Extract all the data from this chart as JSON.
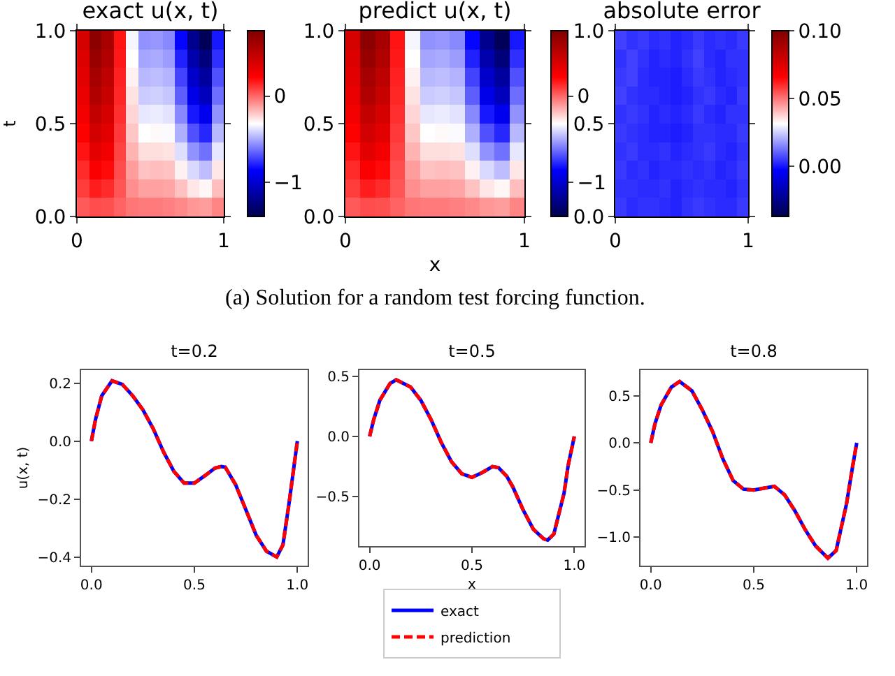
{
  "chart_data": [
    {
      "type": "heatmap",
      "title": "exact u(x, t)",
      "ylabel": "t",
      "x": [
        0.042,
        0.125,
        0.208,
        0.292,
        0.375,
        0.458,
        0.542,
        0.625,
        0.708,
        0.792,
        0.875,
        0.958
      ],
      "cells": [
        [
          0.4,
          0.71,
          0.59,
          0.18,
          -0.34,
          -0.55,
          -0.54,
          -0.57,
          -0.85,
          -1.2,
          -1.36,
          -0.81
        ],
        [
          0.37,
          0.66,
          0.55,
          0.17,
          -0.32,
          -0.51,
          -0.5,
          -0.53,
          -0.79,
          -1.11,
          -1.26,
          -0.76
        ],
        [
          0.34,
          0.6,
          0.5,
          0.15,
          -0.29,
          -0.47,
          -0.46,
          -0.48,
          -0.72,
          -1.02,
          -1.15,
          -0.69
        ],
        [
          0.31,
          0.55,
          0.46,
          0.14,
          -0.26,
          -0.43,
          -0.42,
          -0.44,
          -0.66,
          -0.93,
          -1.06,
          -0.63
        ],
        [
          0.27,
          0.48,
          0.4,
          0.12,
          -0.23,
          -0.37,
          -0.36,
          -0.38,
          -0.57,
          -0.81,
          -0.91,
          -0.55
        ],
        [
          0.23,
          0.41,
          0.34,
          0.1,
          -0.2,
          -0.32,
          -0.31,
          -0.33,
          -0.49,
          -0.69,
          -0.78,
          -0.47
        ],
        [
          0.18,
          0.33,
          0.27,
          0.08,
          -0.16,
          -0.25,
          -0.25,
          -0.26,
          -0.39,
          -0.55,
          -0.62,
          -0.37
        ],
        [
          0.13,
          0.24,
          0.2,
          0.06,
          -0.11,
          -0.19,
          -0.18,
          -0.19,
          -0.29,
          -0.4,
          -0.46,
          -0.27
        ],
        [
          0.09,
          0.16,
          0.13,
          0.04,
          -0.08,
          -0.12,
          -0.12,
          -0.13,
          -0.19,
          -0.27,
          -0.3,
          -0.18
        ],
        [
          0.03,
          0.06,
          0.05,
          0.01,
          -0.03,
          -0.04,
          -0.04,
          -0.05,
          -0.07,
          -0.1,
          -0.11,
          -0.06
        ]
      ],
      "xlim": [
        0,
        1
      ],
      "xticks": [
        {
          "value": 0,
          "label": "0"
        },
        {
          "value": 1,
          "label": "1"
        }
      ],
      "ylim": [
        0,
        1
      ],
      "yticks": [
        {
          "value": 0,
          "label": "0.0"
        },
        {
          "value": 0.5,
          "label": "0.5"
        },
        {
          "value": 1,
          "label": "1.0"
        }
      ],
      "clim": [
        -1.4,
        0.76
      ],
      "cticks": [
        {
          "value": -1,
          "label": "−1"
        },
        {
          "value": 0,
          "label": "0"
        }
      ]
    },
    {
      "type": "heatmap",
      "title": "predict u(x, t)",
      "xlabel": "x",
      "annotations": [
        "(a) Solution for a random test forcing function."
      ],
      "x": [
        0.042,
        0.125,
        0.208,
        0.292,
        0.375,
        0.458,
        0.542,
        0.625,
        0.708,
        0.792,
        0.875,
        0.958
      ],
      "cells": [
        [
          0.4,
          0.71,
          0.59,
          0.18,
          -0.34,
          -0.55,
          -0.54,
          -0.57,
          -0.85,
          -1.2,
          -1.36,
          -0.81
        ],
        [
          0.37,
          0.66,
          0.55,
          0.17,
          -0.32,
          -0.51,
          -0.5,
          -0.53,
          -0.79,
          -1.11,
          -1.26,
          -0.76
        ],
        [
          0.34,
          0.6,
          0.5,
          0.15,
          -0.29,
          -0.47,
          -0.46,
          -0.48,
          -0.72,
          -1.02,
          -1.15,
          -0.69
        ],
        [
          0.31,
          0.55,
          0.46,
          0.14,
          -0.26,
          -0.43,
          -0.42,
          -0.44,
          -0.66,
          -0.93,
          -1.06,
          -0.63
        ],
        [
          0.27,
          0.48,
          0.4,
          0.12,
          -0.23,
          -0.37,
          -0.36,
          -0.38,
          -0.57,
          -0.81,
          -0.91,
          -0.55
        ],
        [
          0.23,
          0.41,
          0.34,
          0.1,
          -0.2,
          -0.32,
          -0.31,
          -0.33,
          -0.49,
          -0.69,
          -0.78,
          -0.47
        ],
        [
          0.18,
          0.33,
          0.27,
          0.08,
          -0.16,
          -0.25,
          -0.25,
          -0.26,
          -0.39,
          -0.55,
          -0.62,
          -0.37
        ],
        [
          0.13,
          0.24,
          0.2,
          0.06,
          -0.11,
          -0.19,
          -0.18,
          -0.19,
          -0.29,
          -0.4,
          -0.46,
          -0.27
        ],
        [
          0.09,
          0.16,
          0.13,
          0.04,
          -0.08,
          -0.12,
          -0.12,
          -0.13,
          -0.19,
          -0.27,
          -0.3,
          -0.18
        ],
        [
          0.03,
          0.06,
          0.05,
          0.01,
          -0.03,
          -0.04,
          -0.04,
          -0.05,
          -0.07,
          -0.1,
          -0.11,
          -0.06
        ]
      ],
      "xlim": [
        0,
        1
      ],
      "xticks": [
        {
          "value": 0,
          "label": "0"
        },
        {
          "value": 1,
          "label": "1"
        }
      ],
      "ylim": [
        0,
        1
      ],
      "yticks": [
        {
          "value": 0,
          "label": "0.0"
        },
        {
          "value": 0.5,
          "label": "0.5"
        },
        {
          "value": 1,
          "label": "1.0"
        }
      ],
      "clim": [
        -1.4,
        0.76
      ],
      "cticks": [
        {
          "value": -1,
          "label": "−1"
        },
        {
          "value": 0,
          "label": "0"
        }
      ]
    },
    {
      "type": "heatmap",
      "title": "absolute error",
      "x": [
        0.042,
        0.125,
        0.208,
        0.292,
        0.375,
        0.458,
        0.542,
        0.625,
        0.708,
        0.792,
        0.875,
        0.958
      ],
      "cells": [
        [
          0.006,
          0.004,
          0.005,
          0.003,
          0.004,
          0.002,
          0.003,
          0.005,
          0.003,
          0.004,
          0.003,
          0.005
        ],
        [
          0.004,
          0.006,
          0.004,
          0.002,
          0.003,
          0.002,
          0.004,
          0.006,
          0.003,
          0.002,
          0.004,
          0.004
        ],
        [
          0.005,
          0.006,
          0.003,
          0.002,
          0.002,
          0.001,
          0.003,
          0.005,
          0.004,
          0.002,
          0.003,
          0.004
        ],
        [
          0.006,
          0.004,
          0.003,
          0.003,
          0.002,
          0.001,
          0.002,
          0.004,
          0.005,
          0.003,
          0.002,
          0.005
        ],
        [
          0.004,
          0.005,
          0.004,
          0.002,
          0.003,
          0.002,
          0.003,
          0.005,
          0.003,
          0.002,
          0.004,
          0.004
        ],
        [
          0.005,
          0.004,
          0.003,
          0.002,
          0.002,
          0.001,
          0.002,
          0.004,
          0.004,
          0.003,
          0.003,
          0.005
        ],
        [
          0.004,
          0.005,
          0.003,
          0.003,
          0.004,
          0.002,
          0.003,
          0.004,
          0.005,
          0.003,
          0.002,
          0.004
        ],
        [
          0.005,
          0.003,
          0.004,
          0.002,
          0.003,
          0.003,
          0.004,
          0.003,
          0.004,
          0.002,
          0.003,
          0.005
        ],
        [
          0.004,
          0.004,
          0.003,
          0.003,
          0.004,
          0.002,
          0.003,
          0.004,
          0.003,
          0.003,
          0.002,
          0.004
        ],
        [
          0.005,
          0.003,
          0.004,
          0.004,
          0.003,
          0.002,
          0.004,
          0.005,
          0.004,
          0.003,
          0.003,
          0.005
        ]
      ],
      "xlim": [
        0,
        1
      ],
      "xticks": [
        {
          "value": 0,
          "label": "0"
        },
        {
          "value": 1,
          "label": "1"
        }
      ],
      "ylim": [
        0,
        1
      ],
      "yticks": [
        {
          "value": 0,
          "label": "0.0"
        },
        {
          "value": 0.5,
          "label": "0.5"
        },
        {
          "value": 1,
          "label": "1.0"
        }
      ],
      "clim": [
        -0.037,
        0.1
      ],
      "cticks": [
        {
          "value": 0,
          "label": "0.00"
        },
        {
          "value": 0.05,
          "label": "0.05"
        },
        {
          "value": 0.1,
          "label": "0.10"
        }
      ]
    },
    {
      "type": "line",
      "title": "t=0.2",
      "ylabel": "u(x, t)",
      "x": [
        0,
        0.02,
        0.05,
        0.1,
        0.15,
        0.2,
        0.25,
        0.3,
        0.35,
        0.4,
        0.45,
        0.5,
        0.55,
        0.6,
        0.63,
        0.65,
        0.7,
        0.75,
        0.8,
        0.85,
        0.9,
        0.93,
        0.96,
        1.0
      ],
      "series": [
        {
          "color": "#0000ff",
          "line_style": "solid",
          "values": [
            0,
            0.075,
            0.156,
            0.208,
            0.196,
            0.157,
            0.108,
            0.043,
            -0.037,
            -0.104,
            -0.145,
            -0.145,
            -0.12,
            -0.093,
            -0.088,
            -0.09,
            -0.15,
            -0.237,
            -0.325,
            -0.38,
            -0.4,
            -0.358,
            -0.213,
            0
          ]
        },
        {
          "color": "#ff0000",
          "line_style": "dashed",
          "values": [
            0,
            0.075,
            0.156,
            0.208,
            0.196,
            0.157,
            0.108,
            0.043,
            -0.037,
            -0.104,
            -0.145,
            -0.145,
            -0.12,
            -0.093,
            -0.088,
            -0.09,
            -0.15,
            -0.237,
            -0.325,
            -0.38,
            -0.4,
            -0.358,
            -0.213,
            0
          ]
        }
      ],
      "xlim": [
        -0.05,
        1.05
      ],
      "xticks": [
        {
          "value": 0,
          "label": "0.0"
        },
        {
          "value": 0.5,
          "label": "0.5"
        },
        {
          "value": 1,
          "label": "1.0"
        }
      ],
      "ylim": [
        -0.43,
        0.245
      ],
      "yticks": [
        {
          "value": -0.4,
          "label": "−0.4"
        },
        {
          "value": -0.2,
          "label": "−0.2"
        },
        {
          "value": 0,
          "label": "0.0"
        },
        {
          "value": 0.2,
          "label": "0.2"
        }
      ]
    },
    {
      "type": "line",
      "title": "t=0.5",
      "xlabel": "x",
      "legend": "bottom",
      "x": [
        0,
        0.02,
        0.05,
        0.1,
        0.13,
        0.2,
        0.25,
        0.3,
        0.35,
        0.4,
        0.45,
        0.5,
        0.55,
        0.6,
        0.63,
        0.67,
        0.7,
        0.75,
        0.8,
        0.85,
        0.87,
        0.9,
        0.95,
        0.97,
        1
      ],
      "series": [
        {
          "name": "exact",
          "color": "#0000ff",
          "line_style": "solid",
          "values": [
            0,
            0.14,
            0.3,
            0.44,
            0.47,
            0.41,
            0.3,
            0.14,
            -0.05,
            -0.21,
            -0.31,
            -0.34,
            -0.3,
            -0.25,
            -0.26,
            -0.33,
            -0.42,
            -0.61,
            -0.77,
            -0.85,
            -0.86,
            -0.81,
            -0.47,
            -0.24,
            0
          ]
        },
        {
          "name": "prediction",
          "color": "#ff0000",
          "line_style": "dashed",
          "values": [
            0,
            0.14,
            0.3,
            0.44,
            0.47,
            0.41,
            0.3,
            0.14,
            -0.05,
            -0.21,
            -0.31,
            -0.34,
            -0.3,
            -0.25,
            -0.26,
            -0.33,
            -0.42,
            -0.61,
            -0.77,
            -0.85,
            -0.86,
            -0.81,
            -0.47,
            -0.24,
            0
          ]
        }
      ],
      "xlim": [
        -0.05,
        1.05
      ],
      "xticks": [
        {
          "value": 0,
          "label": "0.0"
        },
        {
          "value": 0.5,
          "label": "0.5"
        },
        {
          "value": 1,
          "label": "1.0"
        }
      ],
      "ylim": [
        -0.91,
        0.55
      ],
      "yticks": [
        {
          "value": -0.5,
          "label": "−0.5"
        },
        {
          "value": 0,
          "label": "0.0"
        },
        {
          "value": 0.5,
          "label": "0.5"
        }
      ]
    },
    {
      "type": "line",
      "title": "t=0.8",
      "x": [
        0,
        0.02,
        0.05,
        0.1,
        0.14,
        0.2,
        0.25,
        0.3,
        0.35,
        0.4,
        0.45,
        0.5,
        0.55,
        0.6,
        0.65,
        0.7,
        0.75,
        0.8,
        0.86,
        0.9,
        0.95,
        0.98,
        1
      ],
      "series": [
        {
          "color": "#0000ff",
          "line_style": "solid",
          "values": [
            0,
            0.2,
            0.4,
            0.59,
            0.65,
            0.55,
            0.35,
            0.12,
            -0.17,
            -0.4,
            -0.49,
            -0.5,
            -0.48,
            -0.46,
            -0.55,
            -0.72,
            -0.92,
            -1.09,
            -1.22,
            -1.14,
            -0.65,
            -0.25,
            0
          ]
        },
        {
          "color": "#ff0000",
          "line_style": "dashed",
          "values": [
            0,
            0.2,
            0.4,
            0.59,
            0.65,
            0.55,
            0.35,
            0.12,
            -0.17,
            -0.4,
            -0.49,
            -0.5,
            -0.48,
            -0.46,
            -0.55,
            -0.72,
            -0.92,
            -1.09,
            -1.22,
            -1.14,
            -0.65,
            -0.25,
            0
          ]
        }
      ],
      "xlim": [
        -0.05,
        1.05
      ],
      "xticks": [
        {
          "value": 0,
          "label": "0.0"
        },
        {
          "value": 0.5,
          "label": "0.5"
        },
        {
          "value": 1,
          "label": "1.0"
        }
      ],
      "ylim": [
        -1.3,
        0.77
      ],
      "yticks": [
        {
          "value": -1,
          "label": "−1.0"
        },
        {
          "value": -0.5,
          "label": "−0.5"
        },
        {
          "value": 0,
          "label": "0.0"
        },
        {
          "value": 0.5,
          "label": "0.5"
        }
      ]
    }
  ]
}
